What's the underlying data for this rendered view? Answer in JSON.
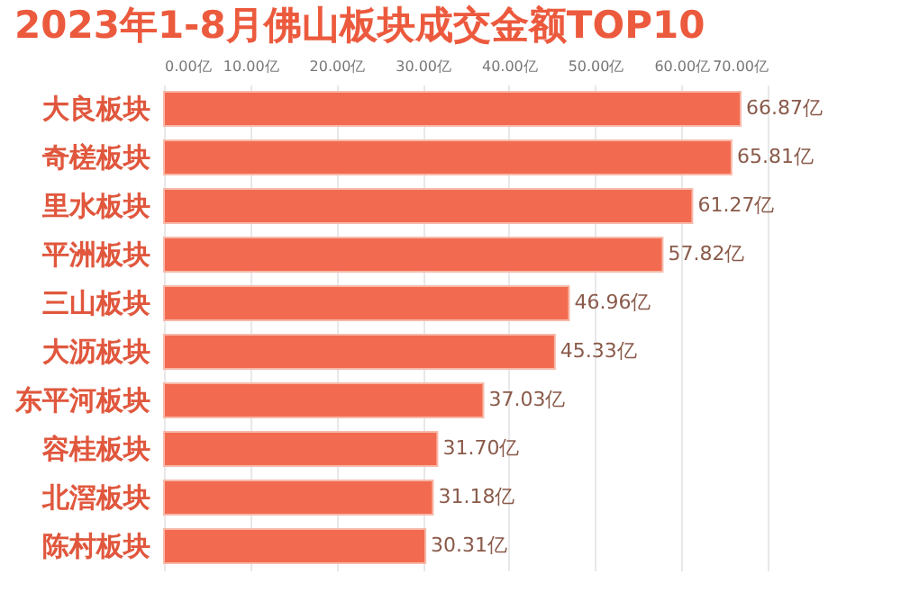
{
  "chart_data": {
    "type": "bar",
    "orientation": "horizontal",
    "title": "2023年1-8月佛山板块成交金额TOP10",
    "categories": [
      "大良板块",
      "奇槎板块",
      "里水板块",
      "平洲板块",
      "三山板块",
      "大沥板块",
      "东平河板块",
      "容桂板块",
      "北滘板块",
      "陈村板块"
    ],
    "values": [
      66.87,
      65.81,
      61.27,
      57.82,
      46.96,
      45.33,
      37.03,
      31.7,
      31.18,
      30.31
    ],
    "value_labels": [
      "66.87亿",
      "65.81亿",
      "61.27亿",
      "57.82亿",
      "46.96亿",
      "45.33亿",
      "37.03亿",
      "31.70亿",
      "31.18亿",
      "30.31亿"
    ],
    "color": "#f26b50",
    "xlim": [
      0,
      70
    ],
    "xticks": [
      {
        "value": 0,
        "label": "0.00亿"
      },
      {
        "value": 10,
        "label": "10.00亿"
      },
      {
        "value": 20,
        "label": "20.00亿"
      },
      {
        "value": 30,
        "label": "30.00亿"
      },
      {
        "value": 40,
        "label": "40.00亿"
      },
      {
        "value": 50,
        "label": "50.00亿"
      },
      {
        "value": 60,
        "label": "60.00亿"
      },
      {
        "value": 70,
        "label": "70.00亿"
      }
    ],
    "grid": "x"
  }
}
